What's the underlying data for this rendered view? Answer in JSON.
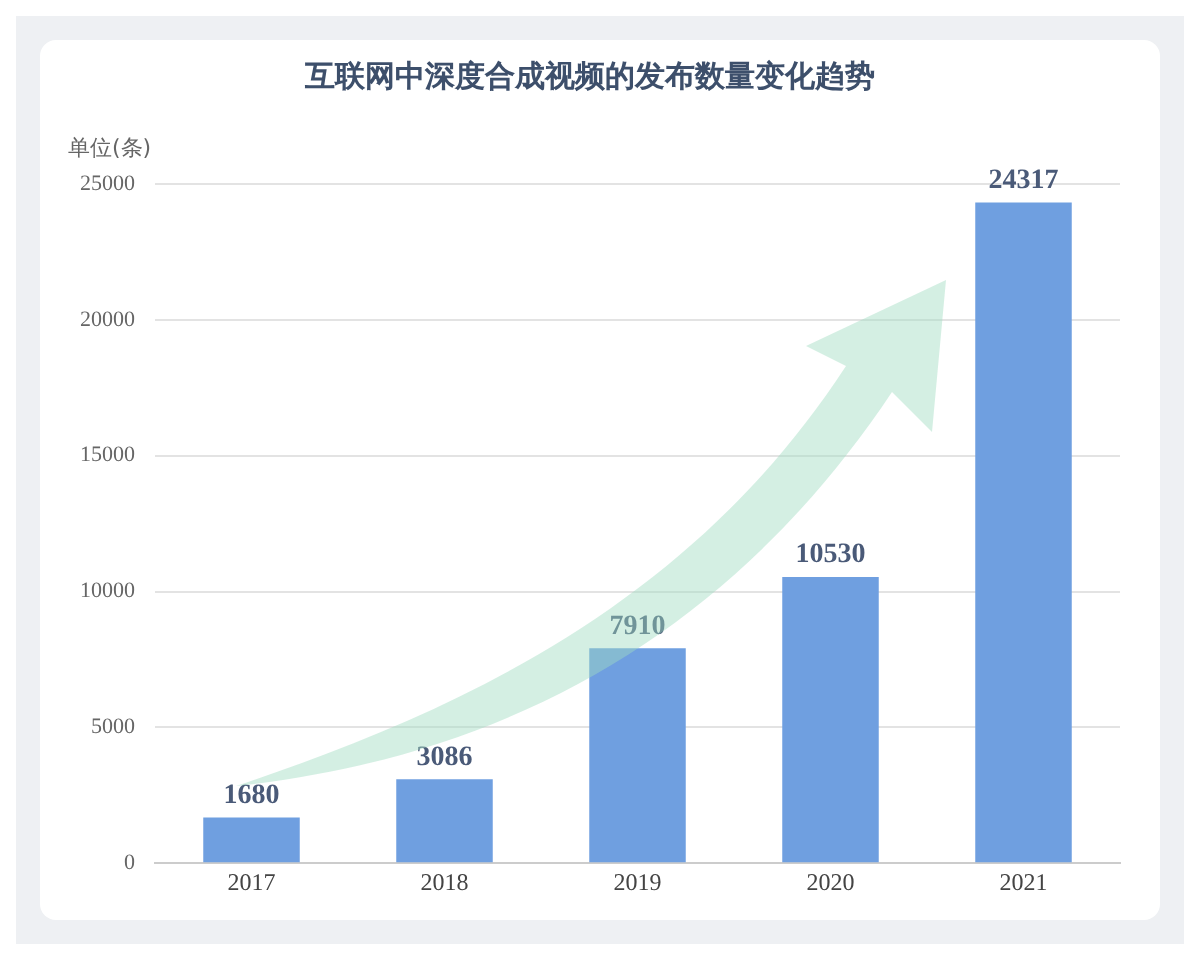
{
  "chart_data": {
    "type": "bar",
    "title": "互联网中深度合成视频的发布数量变化趋势",
    "ylabel": "单位(条)",
    "categories": [
      "2017",
      "2018",
      "2019",
      "2020",
      "2021"
    ],
    "values": [
      1680,
      3086,
      7910,
      10530,
      24317
    ],
    "color": "#6f9fe0",
    "ylim": [
      0,
      25000
    ],
    "yticks": [
      0,
      5000,
      10000,
      15000,
      20000,
      25000
    ],
    "grid": "y",
    "data_labels": true
  }
}
